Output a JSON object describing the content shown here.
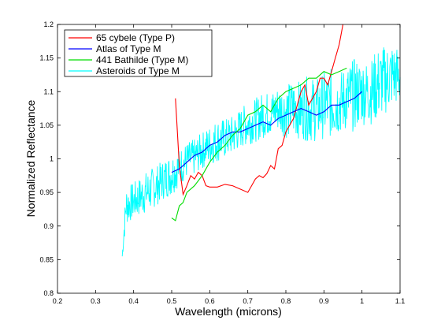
{
  "chart_data": {
    "type": "line",
    "title": "",
    "xlabel": "Wavelength (microns)",
    "ylabel": "Normalized Reflectance",
    "xlim": [
      0.2,
      1.1
    ],
    "ylim": [
      0.8,
      1.2
    ],
    "xticks": [
      0.2,
      0.3,
      0.4,
      0.5,
      0.6,
      0.7,
      0.8,
      0.9,
      1.0,
      1.1
    ],
    "xtick_labels": [
      "0.2",
      "0.3",
      "0.4",
      "0.5",
      "0.6",
      "0.7",
      "0.8",
      "0.9",
      "1",
      "1.1"
    ],
    "yticks": [
      0.8,
      0.85,
      0.9,
      0.95,
      1.0,
      1.05,
      1.1,
      1.15,
      1.2
    ],
    "ytick_labels": [
      "0.8",
      "0.85",
      "0.9",
      "0.95",
      "1",
      "1.05",
      "1.1",
      "1.15",
      "1.2"
    ],
    "grid": false,
    "legend_position": "top-left",
    "series": [
      {
        "name": "65 cybele (Type P)",
        "color": "#ff0000",
        "x": [
          0.51,
          0.52,
          0.53,
          0.54,
          0.55,
          0.56,
          0.57,
          0.58,
          0.59,
          0.6,
          0.62,
          0.64,
          0.66,
          0.68,
          0.7,
          0.71,
          0.72,
          0.73,
          0.74,
          0.75,
          0.76,
          0.77,
          0.78,
          0.79,
          0.8,
          0.81,
          0.82,
          0.83,
          0.84,
          0.85,
          0.86,
          0.87,
          0.88,
          0.89,
          0.9,
          0.91,
          0.92,
          0.93,
          0.94,
          0.95
        ],
        "y": [
          1.09,
          0.99,
          0.947,
          0.96,
          0.975,
          0.97,
          0.98,
          0.975,
          0.96,
          0.958,
          0.958,
          0.962,
          0.96,
          0.955,
          0.95,
          0.96,
          0.97,
          0.975,
          0.972,
          0.978,
          0.99,
          0.985,
          1.015,
          1.02,
          1.04,
          1.05,
          1.06,
          1.08,
          1.1,
          1.11,
          1.08,
          1.09,
          1.1,
          1.12,
          1.12,
          1.11,
          1.13,
          1.15,
          1.17,
          1.2
        ]
      },
      {
        "name": "Atlas of Type M",
        "color": "#0000ff",
        "x": [
          0.5,
          0.52,
          0.54,
          0.56,
          0.58,
          0.6,
          0.62,
          0.64,
          0.66,
          0.68,
          0.7,
          0.72,
          0.74,
          0.76,
          0.78,
          0.8,
          0.82,
          0.84,
          0.86,
          0.88,
          0.9,
          0.92,
          0.94,
          0.96,
          0.98,
          1.0
        ],
        "y": [
          0.98,
          0.985,
          0.995,
          1.005,
          1.01,
          1.02,
          1.025,
          1.035,
          1.04,
          1.04,
          1.045,
          1.05,
          1.055,
          1.05,
          1.06,
          1.065,
          1.07,
          1.075,
          1.07,
          1.065,
          1.07,
          1.08,
          1.08,
          1.085,
          1.09,
          1.1
        ]
      },
      {
        "name": "441 Bathilde (Type M)",
        "color": "#00dd00",
        "x": [
          0.5,
          0.51,
          0.52,
          0.53,
          0.54,
          0.56,
          0.58,
          0.6,
          0.62,
          0.64,
          0.66,
          0.68,
          0.7,
          0.72,
          0.74,
          0.76,
          0.78,
          0.8,
          0.82,
          0.84,
          0.86,
          0.88,
          0.9,
          0.92,
          0.94,
          0.96
        ],
        "y": [
          0.912,
          0.908,
          0.93,
          0.935,
          0.95,
          0.96,
          0.975,
          0.995,
          1.01,
          1.02,
          1.035,
          1.045,
          1.065,
          1.07,
          1.08,
          1.07,
          1.09,
          1.1,
          1.105,
          1.11,
          1.12,
          1.12,
          1.13,
          1.125,
          1.13,
          1.135
        ]
      },
      {
        "name": "Asteroids of Type M",
        "color": "#00ffff",
        "upper_x": [
          0.37,
          0.38,
          0.4,
          0.42,
          0.44,
          0.46,
          0.48,
          0.5,
          0.52,
          0.54,
          0.56,
          0.58,
          0.6,
          0.62,
          0.64,
          0.66,
          0.68,
          0.7,
          0.72,
          0.74,
          0.76,
          0.78,
          0.8,
          0.82,
          0.84,
          0.86,
          0.88,
          0.9,
          0.92,
          0.94,
          0.96,
          0.98,
          1.0,
          1.02,
          1.04,
          1.06,
          1.08,
          1.1
        ],
        "upper_y": [
          0.86,
          0.96,
          0.965,
          0.975,
          0.985,
          0.99,
          1.0,
          1.01,
          1.015,
          1.025,
          1.03,
          1.04,
          1.05,
          1.06,
          1.06,
          1.065,
          1.075,
          1.085,
          1.09,
          1.1,
          1.1,
          1.11,
          1.11,
          1.12,
          1.115,
          1.125,
          1.12,
          1.13,
          1.135,
          1.13,
          1.14,
          1.15,
          1.15,
          1.145,
          1.165,
          1.17,
          1.175,
          1.165
        ],
        "lower_x": [
          0.37,
          0.38,
          0.4,
          0.42,
          0.44,
          0.46,
          0.48,
          0.5,
          0.52,
          0.54,
          0.56,
          0.58,
          0.6,
          0.62,
          0.64,
          0.66,
          0.68,
          0.7,
          0.72,
          0.74,
          0.76,
          0.78,
          0.8,
          0.82,
          0.84,
          0.86,
          0.88,
          0.9,
          0.92,
          0.94,
          0.96,
          0.98,
          1.0,
          1.02,
          1.04,
          1.06,
          1.08,
          1.1
        ],
        "lower_y": [
          0.85,
          0.9,
          0.91,
          0.915,
          0.92,
          0.93,
          0.94,
          0.945,
          0.96,
          0.97,
          0.975,
          0.985,
          0.99,
          0.995,
          1.0,
          1.005,
          1.015,
          1.02,
          1.025,
          1.03,
          1.035,
          1.04,
          1.03,
          1.03,
          1.03,
          1.025,
          1.025,
          1.03,
          1.03,
          1.035,
          1.04,
          1.04,
          1.05,
          1.05,
          1.055,
          1.065,
          1.075,
          1.08
        ]
      }
    ]
  }
}
